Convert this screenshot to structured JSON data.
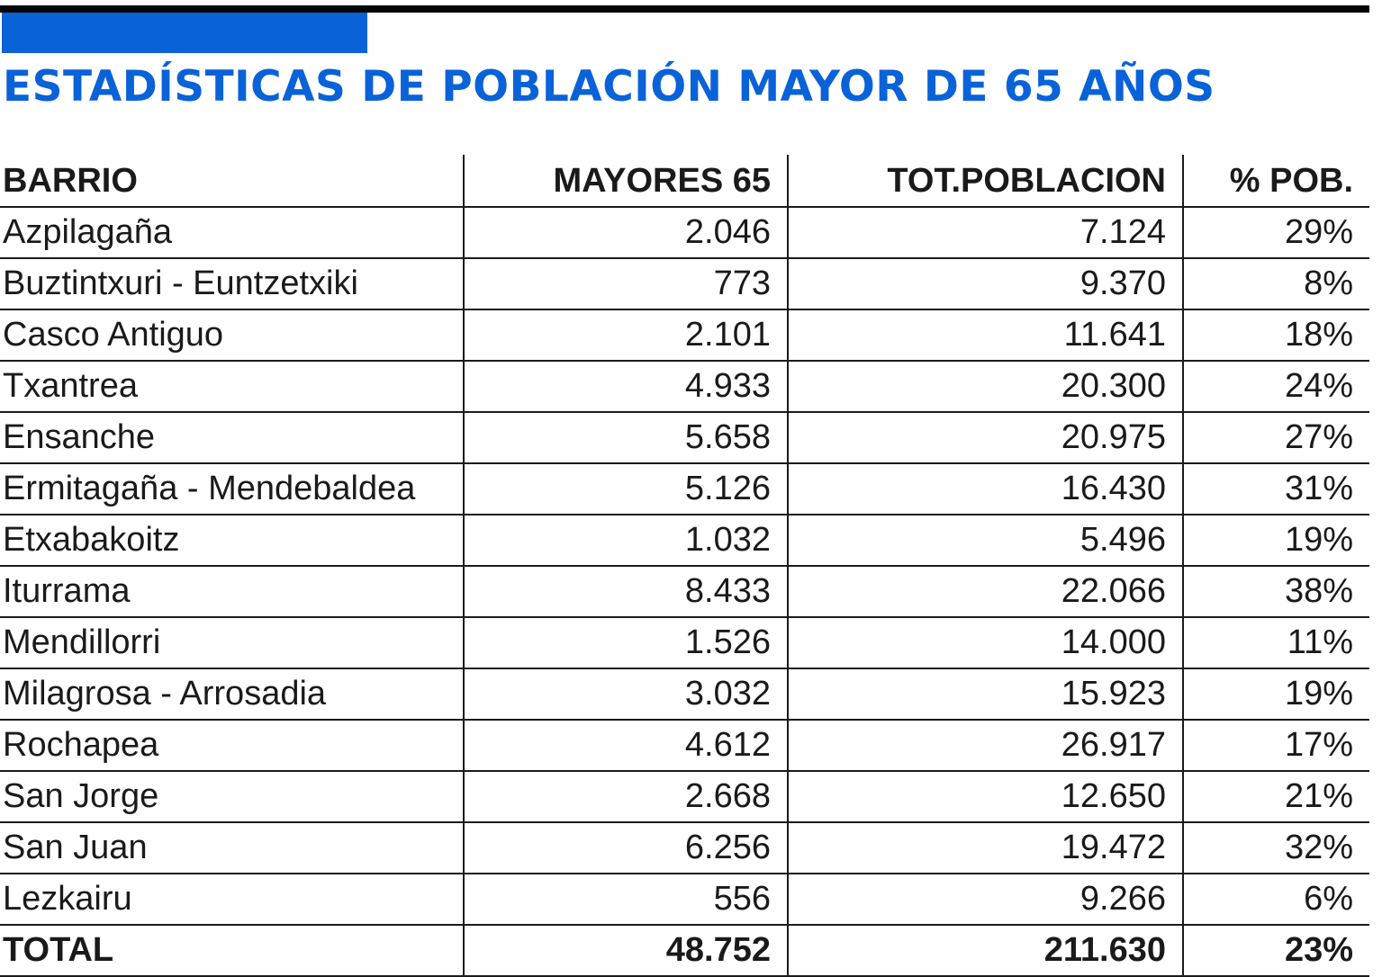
{
  "colors": {
    "accent": "#0a62d8",
    "rule": "#050505",
    "text": "#1a1a1a",
    "background": "#ffffff"
  },
  "title": "ESTADÍSTICAS DE POBLACIÓN MAYOR DE 65 AÑOS",
  "chart_data": {
    "type": "table",
    "title": "ESTADÍSTICAS DE POBLACIÓN MAYOR DE 65 AÑOS",
    "columns": [
      "BARRIO",
      "MAYORES 65",
      "TOT.POBLACION",
      "% POB."
    ],
    "rows": [
      [
        "Azpilagaña",
        "2.046",
        "7.124",
        "29%"
      ],
      [
        "Buztintxuri - Euntzetxiki",
        "773",
        "9.370",
        "8%"
      ],
      [
        "Casco Antiguo",
        "2.101",
        "11.641",
        "18%"
      ],
      [
        "Txantrea",
        "4.933",
        "20.300",
        "24%"
      ],
      [
        "Ensanche",
        "5.658",
        "20.975",
        "27%"
      ],
      [
        "Ermitagaña - Mendebaldea",
        "5.126",
        "16.430",
        "31%"
      ],
      [
        "Etxabakoitz",
        "1.032",
        "5.496",
        "19%"
      ],
      [
        "Iturrama",
        "8.433",
        "22.066",
        "38%"
      ],
      [
        "Mendillorri",
        "1.526",
        "14.000",
        "11%"
      ],
      [
        "Milagrosa - Arrosadia",
        "3.032",
        "15.923",
        "19%"
      ],
      [
        "Rochapea",
        "4.612",
        "26.917",
        "17%"
      ],
      [
        "San Jorge",
        "2.668",
        "12.650",
        "21%"
      ],
      [
        "San Juan",
        "6.256",
        "19.472",
        "32%"
      ],
      [
        "Lezkairu",
        "556",
        "9.266",
        "6%"
      ]
    ],
    "total": [
      "TOTAL",
      "48.752",
      "211.630",
      "23%"
    ]
  }
}
